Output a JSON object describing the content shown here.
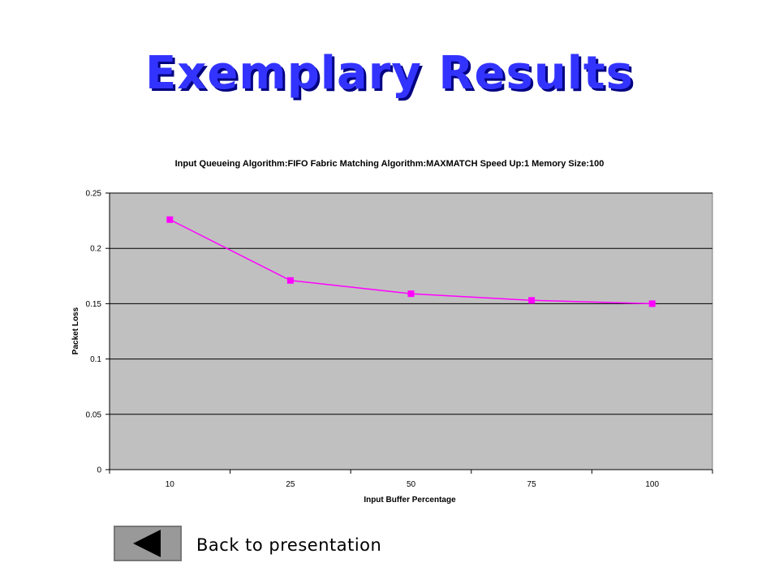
{
  "slide": {
    "title": "Exemplary Results",
    "back_label": "Back to presentation",
    "back_icon": "back-arrow-icon"
  },
  "colors": {
    "title": "#3333ff",
    "plot_area": "#c0c0c0",
    "series": "#ff00ff"
  },
  "chart_data": {
    "type": "line",
    "title": "Input Queueing Algorithm:FIFO Fabric Matching Algorithm:MAXMATCH Speed Up:1 Memory Size:100",
    "xlabel": "Input Buffer Percentage",
    "ylabel": "Packet Loss",
    "categories": [
      "10",
      "25",
      "50",
      "75",
      "100"
    ],
    "ylim": [
      0,
      0.25
    ],
    "yticks": [
      "0",
      "0.05",
      "0.1",
      "0.15",
      "0.2",
      "0.25"
    ],
    "grid": true,
    "legend": "none",
    "series": [
      {
        "values": [
          0.226,
          0.171,
          0.159,
          0.153,
          0.15
        ]
      }
    ]
  }
}
